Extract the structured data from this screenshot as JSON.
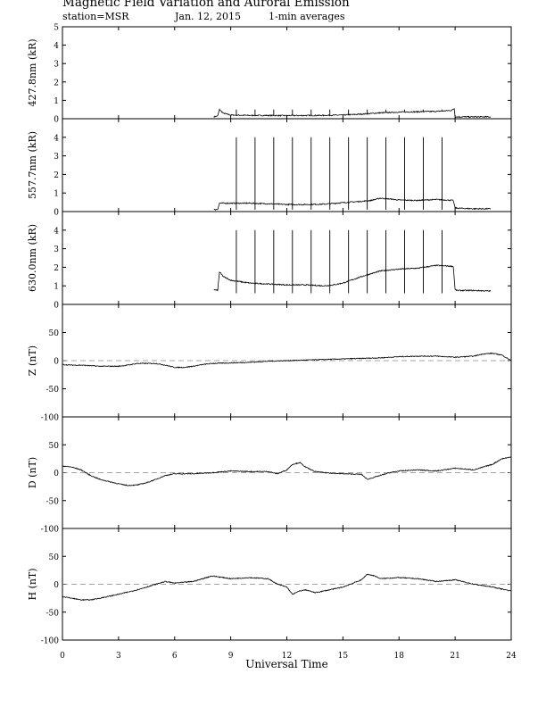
{
  "header": {
    "title": "Magnetic Field Variation and Auroral Emission",
    "station": "station=MSR",
    "date": "Jan. 12, 2015",
    "averaging": "1-min averages"
  },
  "chart_data": [
    {
      "type": "line",
      "ylabel": "427.8nm (kR)",
      "ylim": [
        0,
        5
      ],
      "yticks": [
        0,
        1,
        2,
        3,
        4,
        5
      ],
      "xlim": [
        0,
        24
      ],
      "baseline": null,
      "series": [
        {
          "x": [
            8.1,
            8.3,
            8.4,
            8.6,
            9,
            10,
            12,
            14,
            15,
            16,
            17,
            18,
            19,
            20,
            20.8,
            20.95,
            21.0,
            21.05,
            22,
            22.9
          ],
          "y": [
            0.1,
            0.15,
            0.5,
            0.3,
            0.2,
            0.18,
            0.17,
            0.18,
            0.2,
            0.25,
            0.32,
            0.36,
            0.38,
            0.4,
            0.45,
            0.55,
            0.12,
            0.1,
            0.1,
            0.1
          ]
        }
      ],
      "spikes": {
        "x": [
          9.3,
          10.3,
          11.3,
          12.3,
          13.3,
          14.3,
          15.3,
          16.3,
          17.3,
          18.3,
          19.3,
          20.3
        ],
        "top": 0.5
      }
    },
    {
      "type": "line",
      "ylabel": "557.7nm (kR)",
      "ylim": [
        0,
        5
      ],
      "yticks": [
        0,
        1,
        2,
        3,
        4
      ],
      "xlim": [
        0,
        24
      ],
      "baseline": null,
      "series": [
        {
          "x": [
            8.1,
            8.3,
            8.4,
            9,
            10,
            11,
            12,
            13,
            14,
            15,
            16,
            16.5,
            17,
            17.5,
            18,
            19,
            20,
            20.9,
            21.0,
            21.2,
            22,
            22.9
          ],
          "y": [
            0.1,
            0.12,
            0.45,
            0.45,
            0.45,
            0.42,
            0.38,
            0.38,
            0.4,
            0.48,
            0.55,
            0.6,
            0.72,
            0.68,
            0.62,
            0.6,
            0.65,
            0.6,
            0.2,
            0.18,
            0.15,
            0.15
          ]
        }
      ],
      "spikes": {
        "x": [
          9.3,
          10.3,
          11.3,
          12.3,
          13.3,
          14.3,
          15.3,
          16.3,
          17.3,
          18.3,
          19.3,
          20.3
        ],
        "top": 4.0,
        "dip": 0.1
      }
    },
    {
      "type": "line",
      "ylabel": "630.0nm (kR)",
      "ylim": [
        0,
        5
      ],
      "yticks": [
        0,
        1,
        2,
        3,
        4
      ],
      "xlim": [
        0,
        24
      ],
      "baseline": null,
      "series": [
        {
          "x": [
            8.1,
            8.3,
            8.4,
            8.6,
            9,
            10,
            11,
            12,
            13,
            14,
            14.5,
            15,
            16,
            17,
            18,
            19,
            20,
            20.9,
            21.0,
            21.1,
            22,
            22.9
          ],
          "y": [
            0.8,
            0.75,
            1.75,
            1.5,
            1.3,
            1.15,
            1.1,
            1.05,
            1.05,
            1.0,
            1.05,
            1.15,
            1.5,
            1.8,
            1.9,
            1.95,
            2.1,
            2.05,
            0.8,
            0.75,
            0.75,
            0.72
          ]
        }
      ],
      "spikes": {
        "x": [
          9.3,
          10.3,
          11.3,
          12.3,
          13.3,
          14.3,
          15.3,
          16.3,
          17.3,
          18.3,
          19.3,
          20.3
        ],
        "top": 4.0,
        "dip": 0.6
      }
    },
    {
      "type": "line",
      "ylabel": "Z (nT)",
      "ylim": [
        -100,
        100
      ],
      "yticks": [
        -100,
        -50,
        0,
        50
      ],
      "xlim": [
        0,
        24
      ],
      "baseline": 0,
      "series": [
        {
          "x": [
            0,
            0.5,
            1,
            2,
            3,
            3.5,
            4,
            5,
            5.5,
            6,
            6.5,
            7,
            7.5,
            8,
            9,
            10,
            11,
            12,
            13,
            14,
            15,
            16,
            17,
            18,
            19,
            20,
            21,
            22,
            22.5,
            23,
            23.5,
            24
          ],
          "y": [
            -7,
            -8,
            -8,
            -10,
            -10,
            -8,
            -5,
            -5,
            -8,
            -12,
            -12,
            -10,
            -7,
            -5,
            -4,
            -3,
            -1,
            0,
            1,
            2,
            3,
            4,
            5,
            7,
            8,
            8,
            6,
            8,
            12,
            13,
            10,
            0
          ]
        }
      ]
    },
    {
      "type": "line",
      "ylabel": "D (nT)",
      "ylim": [
        -100,
        100
      ],
      "yticks": [
        -100,
        -50,
        0,
        50
      ],
      "xlim": [
        0,
        24
      ],
      "baseline": 0,
      "series": [
        {
          "x": [
            0,
            0.5,
            1,
            1.5,
            2,
            3,
            3.5,
            4,
            4.5,
            5,
            5.5,
            6,
            7,
            8,
            9,
            10,
            11,
            11.5,
            12,
            12.3,
            12.7,
            13,
            13.5,
            14,
            15,
            16,
            16.3,
            16.5,
            17,
            17.5,
            18,
            19,
            20,
            21,
            22,
            23,
            23.5,
            24
          ],
          "y": [
            12,
            10,
            5,
            -5,
            -12,
            -20,
            -23,
            -22,
            -18,
            -12,
            -5,
            -2,
            -2,
            0,
            3,
            2,
            2,
            -2,
            5,
            15,
            18,
            10,
            2,
            0,
            -2,
            -3,
            -12,
            -10,
            -5,
            0,
            3,
            5,
            3,
            8,
            5,
            15,
            25,
            28
          ]
        }
      ]
    },
    {
      "type": "line",
      "ylabel": "H (nT)",
      "ylim": [
        -100,
        100
      ],
      "yticks": [
        -100,
        -50,
        0,
        50
      ],
      "xlim": [
        0,
        24
      ],
      "baseline": 0,
      "series": [
        {
          "x": [
            0,
            0.5,
            1,
            1.5,
            2,
            3,
            4,
            5,
            5.5,
            6,
            7,
            8,
            9,
            10,
            11,
            11.5,
            12,
            12.3,
            12.7,
            13,
            13.5,
            14,
            15,
            16,
            16.3,
            16.7,
            17,
            18,
            19,
            20,
            21,
            22,
            23,
            24
          ],
          "y": [
            -22,
            -25,
            -28,
            -28,
            -25,
            -18,
            -10,
            0,
            5,
            2,
            5,
            15,
            10,
            12,
            10,
            0,
            -5,
            -18,
            -12,
            -10,
            -15,
            -12,
            -5,
            8,
            18,
            15,
            10,
            12,
            10,
            5,
            8,
            0,
            -5,
            -12
          ]
        }
      ]
    }
  ],
  "xaxis": {
    "label": "Universal Time",
    "ticks": [
      0,
      3,
      6,
      9,
      12,
      15,
      18,
      21,
      24
    ]
  }
}
